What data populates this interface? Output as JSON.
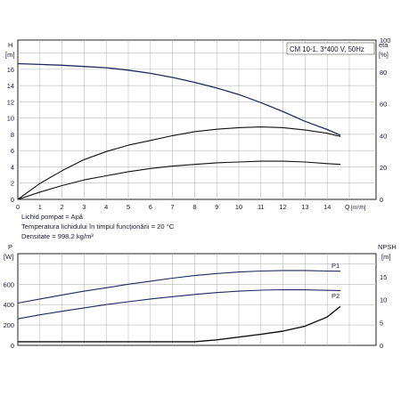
{
  "chart_data": [
    {
      "type": "line",
      "title": "CM 10-1, 3*400 V, 50Hz",
      "ylabel_left": "H",
      "ylabel_left_unit": "[m]",
      "ylabel_right": "eta",
      "ylabel_right_unit": "[%]",
      "xlabel": "Q",
      "xlabel_unit": "[m³/h]",
      "xlim": [
        0,
        15.5
      ],
      "ylim_left": [
        0,
        19.6
      ],
      "ylim_right": [
        0,
        100
      ],
      "x_ticks": [
        "0",
        "1",
        "2",
        "3",
        "4",
        "5",
        "6",
        "7",
        "8",
        "9",
        "10",
        "11",
        "12",
        "13",
        "14"
      ],
      "y_ticks_left": [
        "0",
        "2",
        "4",
        "6",
        "8",
        "10",
        "12",
        "14",
        "16"
      ],
      "y_ticks_right": [
        "0",
        "20",
        "40",
        "60",
        "80",
        "100"
      ],
      "grid": true,
      "series": [
        {
          "axis": "left",
          "color": "#1f2a5c",
          "x": [
            0,
            1,
            2,
            3,
            4,
            5,
            6,
            7,
            8,
            9,
            10,
            11,
            12,
            13,
            14,
            14.6
          ],
          "values": [
            16.7,
            16.6,
            16.5,
            16.35,
            16.2,
            15.9,
            15.5,
            15.0,
            14.4,
            13.7,
            12.9,
            11.9,
            10.8,
            9.6,
            8.6,
            7.9
          ]
        },
        {
          "axis": "right",
          "color": "#111111",
          "x": [
            0,
            1,
            2,
            3,
            4,
            5,
            6,
            7,
            8,
            9,
            10,
            11,
            12,
            13,
            14,
            14.6
          ],
          "values": [
            0,
            10,
            18,
            25,
            30,
            34,
            37,
            40,
            42.5,
            44,
            45,
            45.5,
            45,
            43.5,
            41.5,
            39.5
          ]
        },
        {
          "axis": "left",
          "color": "#111111",
          "x": [
            0,
            1,
            2,
            3,
            4,
            5,
            6,
            7,
            8,
            9,
            10,
            11,
            12,
            13,
            14,
            14.6
          ],
          "values": [
            0,
            0.9,
            1.7,
            2.4,
            2.9,
            3.4,
            3.8,
            4.1,
            4.3,
            4.5,
            4.6,
            4.7,
            4.7,
            4.6,
            4.4,
            4.3
          ]
        }
      ]
    },
    {
      "type": "line",
      "ylabel_left": "P",
      "ylabel_left_unit": "[W]",
      "ylabel_right": "NPSH",
      "ylabel_right_unit": "[m]",
      "xlim": [
        0,
        15.5
      ],
      "ylim_left": [
        0,
        900
      ],
      "ylim_right": [
        0,
        20
      ],
      "y_ticks_left": [
        "0",
        "200",
        "400",
        "600"
      ],
      "y_ticks_right": [
        "0",
        "5",
        "10",
        "15"
      ],
      "grid": true,
      "series": [
        {
          "name": "P1",
          "axis": "left",
          "color": "#1f2a5c",
          "x": [
            0,
            1,
            2,
            3,
            4,
            5,
            6,
            7,
            8,
            9,
            10,
            11,
            12,
            13,
            14,
            14.6
          ],
          "values": [
            415,
            455,
            495,
            532,
            565,
            600,
            630,
            660,
            685,
            705,
            720,
            730,
            735,
            735,
            730,
            728
          ]
        },
        {
          "name": "P2",
          "axis": "left",
          "color": "#1f2a5c",
          "x": [
            0,
            1,
            2,
            3,
            4,
            5,
            6,
            7,
            8,
            9,
            10,
            11,
            12,
            13,
            14,
            14.6
          ],
          "values": [
            260,
            300,
            335,
            368,
            400,
            428,
            455,
            478,
            500,
            518,
            532,
            542,
            546,
            545,
            540,
            538
          ]
        },
        {
          "axis": "right",
          "color": "#111111",
          "x": [
            0,
            3,
            4,
            5,
            6,
            7,
            8,
            9,
            10,
            11,
            12,
            13,
            14,
            14.6
          ],
          "values": [
            0.8,
            0.8,
            0.8,
            0.8,
            0.8,
            0.8,
            0.8,
            1.2,
            1.8,
            2.4,
            3.1,
            4.2,
            6.2,
            8.5
          ]
        }
      ]
    }
  ],
  "notes": {
    "fluid": "Lichid pompat = Apă",
    "temperature": "Temperatura lichidului în timpul funcţionării = 20 °C",
    "density": "Densitate = 998.2 kg/m³"
  }
}
